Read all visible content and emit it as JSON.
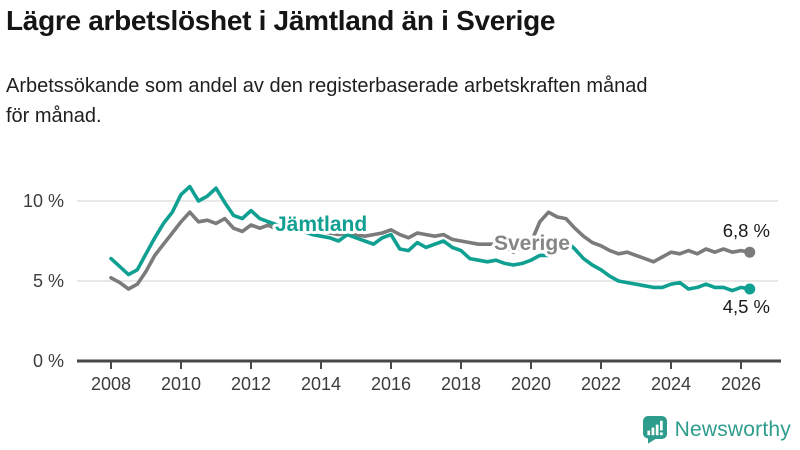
{
  "header": {
    "title": "Lägre arbetslöshet i Jämtland än i Sverige",
    "subtitle": "Arbetssökande som andel av den registerbaserade arbetskraften månad för månad.",
    "subtitle_lines": [
      "Arbetssökande som andel av den registerbaserade arbetskraften månad",
      "för månad."
    ]
  },
  "chart_data": {
    "type": "line",
    "title": "Lägre arbetslöshet i Jämtland än i Sverige",
    "subtitle": "Arbetssökande som andel av den registerbaserade arbetskraften månad för månad.",
    "x_start": 2008.0,
    "x_step": 0.25,
    "xlim": [
      2007.0,
      2027.0
    ],
    "ylim": [
      0,
      12.5
    ],
    "x_ticks": [
      2008,
      2010,
      2012,
      2014,
      2016,
      2018,
      2020,
      2022,
      2024,
      2026
    ],
    "y_ticks": [
      0,
      5,
      10
    ],
    "y_tick_suffix": " %",
    "grid": "horizontal",
    "legend_position": "inline-labels",
    "axis_color": "#474747",
    "grid_color": "#e1e1e1",
    "tick_label_color": "#3d3d3d",
    "value_label_color": "#1a1a1a",
    "series": [
      {
        "name": "Sverige",
        "color": "#7b7b7b",
        "label_color": "#868686",
        "end_label": "6,8 %",
        "end_value": 6.8,
        "values": [
          5.2,
          4.9,
          4.5,
          4.8,
          5.6,
          6.6,
          7.3,
          8.0,
          8.7,
          9.3,
          8.7,
          8.8,
          8.6,
          8.9,
          8.3,
          8.1,
          8.5,
          8.3,
          8.5,
          8.2,
          8.4,
          8.3,
          8.2,
          8.1,
          8.1,
          8.0,
          7.9,
          8.0,
          7.9,
          7.8,
          7.9,
          8.0,
          8.2,
          7.9,
          7.7,
          8.0,
          7.9,
          7.8,
          7.9,
          7.6,
          7.5,
          7.4,
          7.3,
          7.3,
          7.3,
          7.2,
          6.8,
          7.2,
          7.4,
          8.7,
          9.3,
          9.0,
          8.9,
          8.3,
          7.8,
          7.4,
          7.2,
          6.9,
          6.7,
          6.8,
          6.6,
          6.4,
          6.2,
          6.5,
          6.8,
          6.7,
          6.9,
          6.7,
          7.0,
          6.8,
          7.0,
          6.8,
          6.9,
          6.8
        ]
      },
      {
        "name": "Jämtland",
        "color": "#10a092",
        "label_color": "#10a092",
        "end_label": "4,5 %",
        "end_value": 4.5,
        "values": [
          6.4,
          5.9,
          5.4,
          5.7,
          6.7,
          7.7,
          8.6,
          9.3,
          10.4,
          10.9,
          10.0,
          10.3,
          10.8,
          9.9,
          9.1,
          8.9,
          9.4,
          8.9,
          8.7,
          8.5,
          8.3,
          8.2,
          8.1,
          7.9,
          7.8,
          7.7,
          7.5,
          7.9,
          7.7,
          7.5,
          7.3,
          7.7,
          7.9,
          7.0,
          6.9,
          7.4,
          7.1,
          7.3,
          7.5,
          7.1,
          6.9,
          6.4,
          6.3,
          6.2,
          6.3,
          6.1,
          6.0,
          6.1,
          6.3,
          6.6,
          6.6,
          7.1,
          7.5,
          7.0,
          6.4,
          6.0,
          5.7,
          5.3,
          5.0,
          4.9,
          4.8,
          4.7,
          4.6,
          4.6,
          4.8,
          4.9,
          4.5,
          4.6,
          4.8,
          4.6,
          4.6,
          4.4,
          4.6,
          4.5
        ]
      }
    ]
  },
  "footer": {
    "brand": "Newsworthy",
    "brand_color": "#2e9c8c",
    "logo_icon": "newsworthy-speech-bubble-barchart-icon"
  }
}
